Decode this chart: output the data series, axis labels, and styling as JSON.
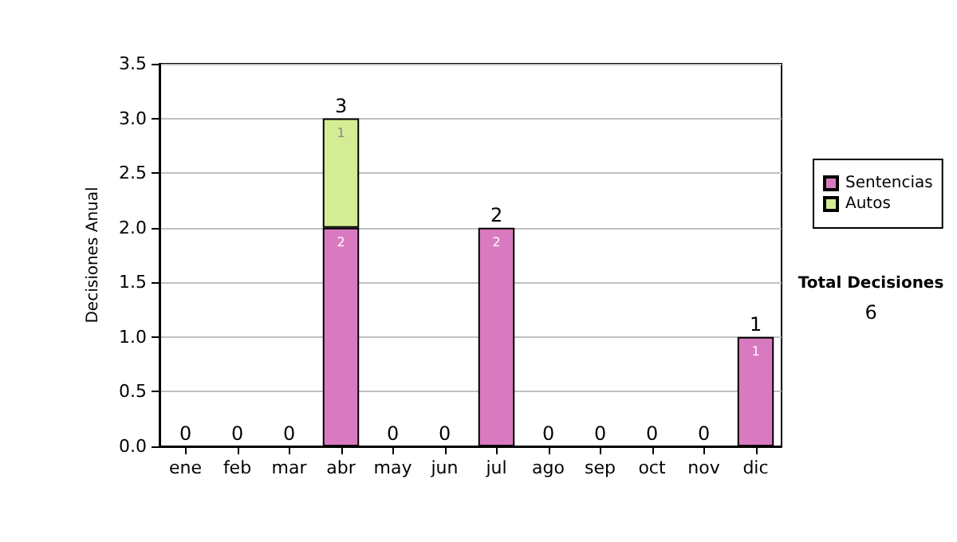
{
  "chart_data": {
    "type": "bar",
    "stacked": true,
    "ylabel": "Decisiones Anual",
    "categories": [
      "ene",
      "feb",
      "mar",
      "abr",
      "may",
      "jun",
      "jul",
      "ago",
      "sep",
      "oct",
      "nov",
      "dic"
    ],
    "series": [
      {
        "name": "Sentencias",
        "color": "#d97ac0",
        "values": [
          0,
          0,
          0,
          2,
          0,
          0,
          2,
          0,
          0,
          0,
          0,
          1
        ],
        "value_labels": [
          null,
          null,
          null,
          "2",
          null,
          null,
          "2",
          null,
          null,
          null,
          null,
          "1"
        ]
      },
      {
        "name": "Autos",
        "color": "#d4ec94",
        "values": [
          0,
          0,
          0,
          1,
          0,
          0,
          0,
          0,
          0,
          0,
          0,
          0
        ],
        "value_labels": [
          null,
          null,
          null,
          "1",
          null,
          null,
          null,
          null,
          null,
          null,
          null,
          null
        ]
      }
    ],
    "totals": [
      "0",
      "0",
      "0",
      "3",
      "0",
      "0",
      "2",
      "0",
      "0",
      "0",
      "0",
      "1"
    ],
    "ylim": [
      0,
      3.5
    ],
    "yticks": [
      "0.0",
      "0.5",
      "1.0",
      "1.5",
      "2.0",
      "2.5",
      "3.0",
      "3.5"
    ],
    "grid": "y",
    "legend": "right",
    "annotations": [
      "Total Decisiones",
      "6"
    ]
  }
}
